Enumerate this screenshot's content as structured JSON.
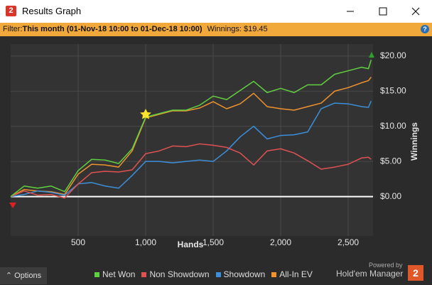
{
  "window": {
    "title": "Results Graph",
    "filter": {
      "label": "Filter:",
      "range": "This month (01-Nov-18 10:00 to 01-Dec-18 10:00)",
      "winnings": "Winnings: $19.45"
    },
    "options": "Options",
    "powered_by": "Powered by",
    "brand": "Hold'em Manager"
  },
  "chart_data": {
    "type": "line",
    "xlabel": "Hands",
    "ylabel": "Winnings",
    "x": [
      0,
      100,
      200,
      300,
      400,
      500,
      600,
      700,
      800,
      900,
      1000,
      1100,
      1200,
      1300,
      1400,
      1500,
      1600,
      1700,
      1800,
      1900,
      2000,
      2100,
      2200,
      2300,
      2400,
      2500,
      2600,
      2650,
      2670
    ],
    "series": [
      {
        "name": "Net Won",
        "color": "#5fd13f",
        "values": [
          0,
          1.5,
          1.2,
          1.5,
          0.7,
          3.7,
          5.3,
          5.2,
          4.7,
          6.8,
          11.3,
          11.8,
          12.3,
          12.3,
          13.0,
          14.3,
          13.8,
          15.1,
          16.4,
          14.8,
          15.4,
          14.8,
          15.9,
          15.9,
          17.4,
          17.9,
          18.4,
          18.2,
          19.45
        ]
      },
      {
        "name": "Non Showdown",
        "color": "#e05252",
        "values": [
          0,
          0.8,
          0.2,
          0.3,
          -0.2,
          1.8,
          3.4,
          3.6,
          3.5,
          3.8,
          6.1,
          6.5,
          7.2,
          7.1,
          7.5,
          7.3,
          7.0,
          6.2,
          4.5,
          6.5,
          6.8,
          6.2,
          5.1,
          3.9,
          4.2,
          4.6,
          5.5,
          5.6,
          5.3
        ]
      },
      {
        "name": "Showdown",
        "color": "#3b8fdb",
        "values": [
          0,
          0.3,
          0.8,
          0.6,
          0.2,
          1.8,
          2.0,
          1.5,
          1.2,
          3.0,
          5.0,
          5.0,
          4.8,
          5.0,
          5.2,
          5.0,
          6.5,
          8.5,
          10.0,
          8.2,
          8.7,
          8.8,
          9.2,
          12.5,
          13.3,
          13.2,
          12.8,
          12.7,
          13.6
        ]
      },
      {
        "name": "All-In EV",
        "color": "#f0922e",
        "values": [
          0,
          1.0,
          0.8,
          0.7,
          0.3,
          3.2,
          4.6,
          4.5,
          4.2,
          6.5,
          11.2,
          11.7,
          12.2,
          12.2,
          12.6,
          13.5,
          12.5,
          13.2,
          14.7,
          12.8,
          12.5,
          12.3,
          12.8,
          13.3,
          15.0,
          15.5,
          16.2,
          16.5,
          17.0
        ]
      }
    ],
    "xlim": [
      0,
      2684
    ],
    "ylim": [
      -5.6,
      21.7
    ],
    "xticks": [
      500,
      {
        "value": 1000,
        "label": "1,000"
      },
      {
        "value": 1500,
        "label": "1,500"
      },
      {
        "value": 2000,
        "label": "2,000"
      },
      {
        "value": 2500,
        "label": "2,500"
      }
    ],
    "yticks": [
      {
        "value": 0,
        "label": "$0.00"
      },
      {
        "value": 5,
        "label": "$5.00"
      },
      {
        "value": 10,
        "label": "$10.00"
      },
      {
        "value": 15,
        "label": "$15.00"
      },
      {
        "value": 20,
        "label": "$20.00"
      }
    ],
    "grid": true
  }
}
